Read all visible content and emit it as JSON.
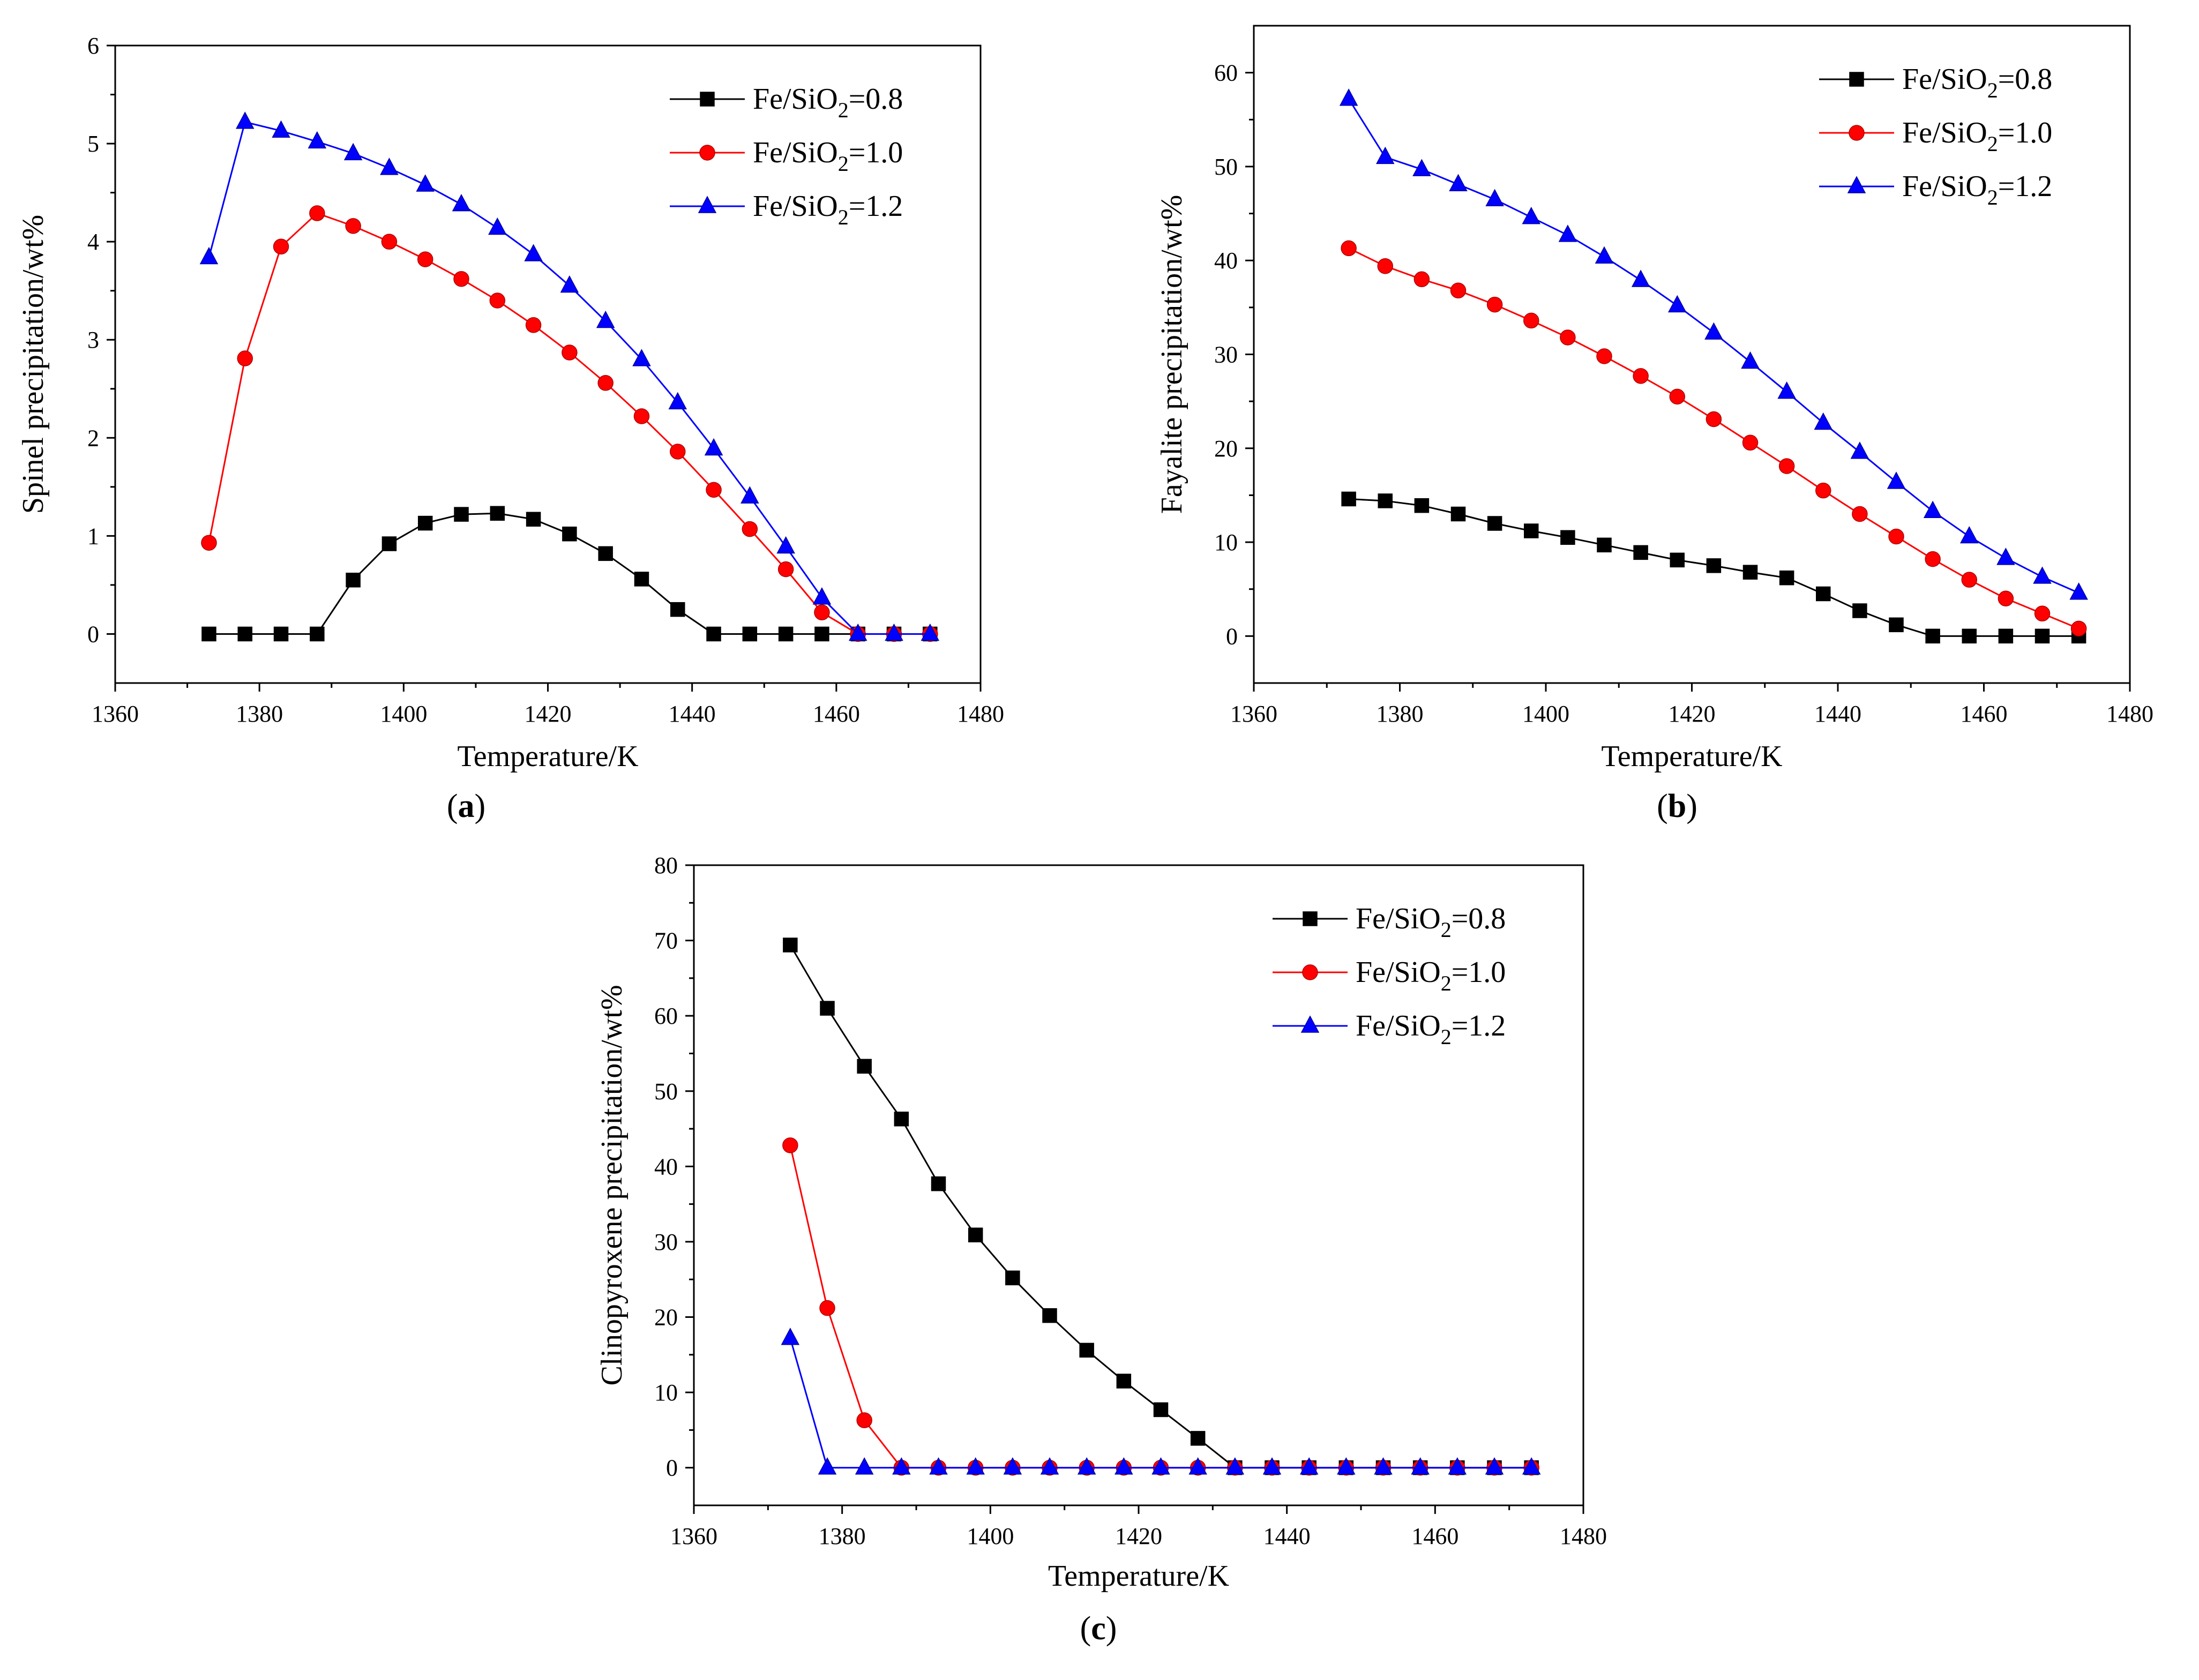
{
  "figure": {
    "panel_labels": [
      "a",
      "b",
      "c"
    ]
  },
  "chart_data": [
    {
      "id": "a",
      "type": "line",
      "title": "",
      "xlabel": "Temperature/K",
      "ylabel": "Spinel precipitation/wt%",
      "xlim": [
        1360,
        1480
      ],
      "ylim": [
        -0.5,
        6
      ],
      "xticks": [
        1360,
        1380,
        1400,
        1420,
        1440,
        1460,
        1480
      ],
      "yticks": [
        0,
        1,
        2,
        3,
        4,
        5,
        6
      ],
      "grid": false,
      "legend_position": "top-right",
      "x": [
        1373,
        1378,
        1383,
        1388,
        1393,
        1398,
        1403,
        1408,
        1413,
        1418,
        1423,
        1428,
        1433,
        1438,
        1443,
        1448,
        1453,
        1458,
        1463,
        1468,
        1473
      ],
      "series": [
        {
          "name": "Fe/SiO2=0.8",
          "label_main": "Fe/SiO",
          "label_sub": "2",
          "label_tail": "=0.8",
          "color": "#000000",
          "marker": "square",
          "values": [
            0,
            0,
            0,
            0,
            0.55,
            0.92,
            1.13,
            1.22,
            1.23,
            1.17,
            1.02,
            0.82,
            0.56,
            0.25,
            0,
            0,
            0,
            0,
            0,
            0,
            0
          ]
        },
        {
          "name": "Fe/SiO2=1.0",
          "label_main": "Fe/SiO",
          "label_sub": "2",
          "label_tail": "=1.0",
          "color": "#ff0000",
          "marker": "circle",
          "values": [
            0.93,
            2.81,
            3.95,
            4.29,
            4.16,
            4.0,
            3.82,
            3.62,
            3.4,
            3.15,
            2.87,
            2.56,
            2.22,
            1.86,
            1.47,
            1.07,
            0.66,
            0.22,
            0,
            0,
            0
          ]
        },
        {
          "name": "Fe/SiO2=1.2",
          "label_main": "Fe/SiO",
          "label_sub": "2",
          "label_tail": "=1.2",
          "color": "#0000ff",
          "marker": "triangle",
          "values": [
            3.84,
            5.22,
            5.13,
            5.02,
            4.9,
            4.75,
            4.58,
            4.38,
            4.14,
            3.87,
            3.55,
            3.19,
            2.8,
            2.36,
            1.89,
            1.4,
            0.89,
            0.37,
            0,
            0,
            0
          ]
        }
      ]
    },
    {
      "id": "b",
      "type": "line",
      "title": "",
      "xlabel": "Temperature/K",
      "ylabel": "Fayalite precipitation/wt%",
      "xlim": [
        1360,
        1480
      ],
      "ylim": [
        -5,
        65
      ],
      "xticks": [
        1360,
        1380,
        1400,
        1420,
        1440,
        1460,
        1480
      ],
      "yticks": [
        0,
        10,
        20,
        30,
        40,
        50,
        60
      ],
      "grid": false,
      "legend_position": "top-right",
      "x": [
        1373,
        1378,
        1383,
        1388,
        1393,
        1398,
        1403,
        1408,
        1413,
        1418,
        1423,
        1428,
        1433,
        1438,
        1443,
        1448,
        1453,
        1458,
        1463,
        1468,
        1473
      ],
      "series": [
        {
          "name": "Fe/SiO2=0.8",
          "label_main": "Fe/SiO",
          "label_sub": "2",
          "label_tail": "=0.8",
          "color": "#000000",
          "marker": "square",
          "values": [
            14.6,
            14.4,
            13.9,
            13.0,
            12.0,
            11.2,
            10.5,
            9.7,
            8.9,
            8.1,
            7.5,
            6.8,
            6.2,
            4.5,
            2.7,
            1.2,
            0,
            0,
            0,
            0,
            0
          ]
        },
        {
          "name": "Fe/SiO2=1.0",
          "label_main": "Fe/SiO",
          "label_sub": "2",
          "label_tail": "=1.0",
          "color": "#ff0000",
          "marker": "circle",
          "values": [
            41.3,
            39.4,
            38.0,
            36.8,
            35.3,
            33.6,
            31.8,
            29.8,
            27.7,
            25.5,
            23.1,
            20.6,
            18.1,
            15.5,
            13.0,
            10.6,
            8.2,
            6.0,
            4.0,
            2.4,
            0.8
          ]
        },
        {
          "name": "Fe/SiO2=1.2",
          "label_main": "Fe/SiO",
          "label_sub": "2",
          "label_tail": "=1.2",
          "color": "#0000ff",
          "marker": "triangle",
          "values": [
            57.2,
            51.0,
            49.7,
            48.1,
            46.5,
            44.6,
            42.7,
            40.4,
            37.9,
            35.2,
            32.3,
            29.2,
            26.0,
            22.7,
            19.6,
            16.4,
            13.3,
            10.6,
            8.3,
            6.3,
            4.6
          ]
        }
      ]
    },
    {
      "id": "c",
      "type": "line",
      "title": "",
      "xlabel": "Temperature/K",
      "ylabel": "Clinopyroxene precipitation/wt%",
      "xlim": [
        1360,
        1480
      ],
      "ylim": [
        -5,
        80
      ],
      "xticks": [
        1360,
        1380,
        1400,
        1420,
        1440,
        1460,
        1480
      ],
      "yticks": [
        0,
        10,
        20,
        30,
        40,
        50,
        60,
        70,
        80
      ],
      "grid": false,
      "legend_position": "top-right",
      "x": [
        1373,
        1378,
        1383,
        1388,
        1393,
        1398,
        1403,
        1408,
        1413,
        1418,
        1423,
        1428,
        1433,
        1438,
        1443,
        1448,
        1453,
        1458,
        1463,
        1468,
        1473
      ],
      "series": [
        {
          "name": "Fe/SiO2=0.8",
          "label_main": "Fe/SiO",
          "label_sub": "2",
          "label_tail": "=0.8",
          "color": "#000000",
          "marker": "square",
          "values": [
            69.4,
            61.0,
            53.3,
            46.3,
            37.7,
            30.9,
            25.2,
            20.2,
            15.6,
            11.5,
            7.7,
            3.9,
            0,
            0,
            0,
            0,
            0,
            0,
            0,
            0,
            0
          ]
        },
        {
          "name": "Fe/SiO2=1.0",
          "label_main": "Fe/SiO",
          "label_sub": "2",
          "label_tail": "=1.0",
          "color": "#ff0000",
          "marker": "circle",
          "values": [
            42.8,
            21.2,
            6.3,
            0,
            0,
            0,
            0,
            0,
            0,
            0,
            0,
            0,
            0,
            0,
            0,
            0,
            0,
            0,
            0,
            0,
            0
          ]
        },
        {
          "name": "Fe/SiO2=1.2",
          "label_main": "Fe/SiO",
          "label_sub": "2",
          "label_tail": "=1.2",
          "color": "#0000ff",
          "marker": "triangle",
          "values": [
            17.2,
            0,
            0,
            0,
            0,
            0,
            0,
            0,
            0,
            0,
            0,
            0,
            0,
            0,
            0,
            0,
            0,
            0,
            0,
            0,
            0
          ]
        }
      ]
    }
  ]
}
